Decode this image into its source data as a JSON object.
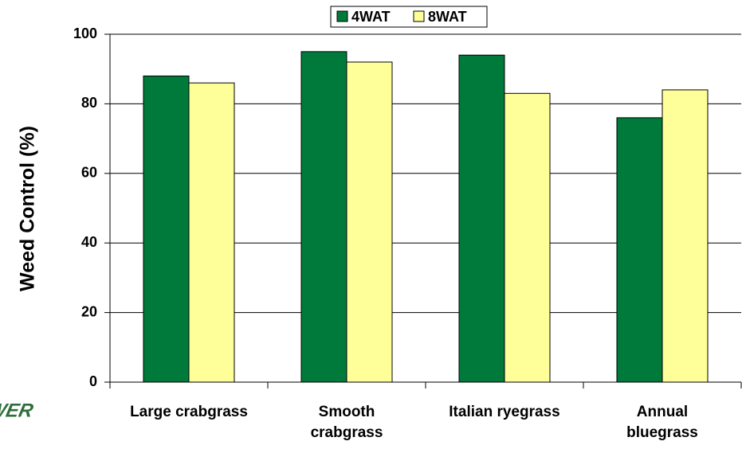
{
  "chart_data": {
    "type": "bar",
    "y_label": "Weed Control (%)",
    "logo": "TOWER",
    "categories": [
      "Large crabgrass",
      "Smooth\ncrabgrass",
      "Italian ryegrass",
      "Annual\nbluegrass"
    ],
    "series": [
      {
        "name": "4WAT",
        "color": "#007a3a",
        "values": [
          88,
          95,
          94,
          76
        ]
      },
      {
        "name": "8WAT",
        "color": "#ffff99",
        "values": [
          86,
          92,
          83,
          84
        ]
      }
    ],
    "ylim": [
      0,
      100
    ],
    "yticks": [
      0,
      20,
      40,
      60,
      80,
      100
    ],
    "grid": true,
    "legend": "top"
  }
}
